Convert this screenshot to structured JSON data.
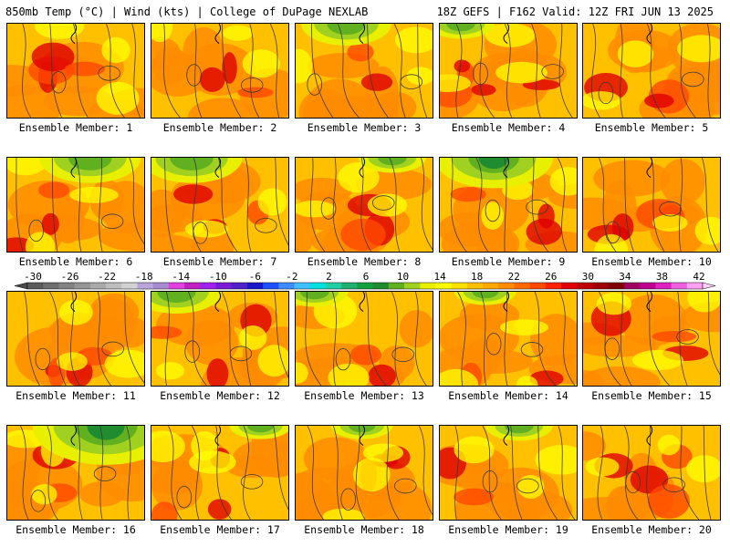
{
  "header": {
    "left": "850mb Temp (°C) | Wind (kts) | College of DuPage NEXLAB",
    "right": "18Z GEFS | F162 Valid: 12Z FRI JUN 13 2025"
  },
  "panels": [
    {
      "label": "Ensemble Member: 1",
      "hot": 0.65,
      "cool": 0.0
    },
    {
      "label": "Ensemble Member: 2",
      "hot": 0.45,
      "cool": 0.05
    },
    {
      "label": "Ensemble Member: 3",
      "hot": 0.4,
      "cool": 0.35
    },
    {
      "label": "Ensemble Member: 4",
      "hot": 0.85,
      "cool": 0.15
    },
    {
      "label": "Ensemble Member: 5",
      "hot": 0.5,
      "cool": 0.0
    },
    {
      "label": "Ensemble Member: 6",
      "hot": 0.55,
      "cool": 0.45
    },
    {
      "label": "Ensemble Member: 7",
      "hot": 0.45,
      "cool": 0.45
    },
    {
      "label": "Ensemble Member: 8",
      "hot": 0.55,
      "cool": 0.15
    },
    {
      "label": "Ensemble Member: 9",
      "hot": 0.55,
      "cool": 0.6
    },
    {
      "label": "Ensemble Member: 10",
      "hot": 0.65,
      "cool": 0.05
    },
    {
      "label": "Ensemble Member: 11",
      "hot": 0.7,
      "cool": 0.0
    },
    {
      "label": "Ensemble Member: 12",
      "hot": 0.45,
      "cool": 0.35
    },
    {
      "label": "Ensemble Member: 13",
      "hot": 0.4,
      "cool": 0.15
    },
    {
      "label": "Ensemble Member: 14",
      "hot": 0.4,
      "cool": 0.1
    },
    {
      "label": "Ensemble Member: 15",
      "hot": 0.45,
      "cool": 0.05
    },
    {
      "label": "Ensemble Member: 16",
      "hot": 0.35,
      "cool": 0.85
    },
    {
      "label": "Ensemble Member: 17",
      "hot": 0.45,
      "cool": 0.1
    },
    {
      "label": "Ensemble Member: 18",
      "hot": 0.45,
      "cool": 0.1
    },
    {
      "label": "Ensemble Member: 19",
      "hot": 0.4,
      "cool": 0.15
    },
    {
      "label": "Ensemble Member: 20",
      "hot": 0.6,
      "cool": 0.0
    }
  ],
  "colorbar": {
    "labels": [
      "-30",
      "-26",
      "-22",
      "-18",
      "-14",
      "-10",
      "-6",
      "-2",
      "2",
      "6",
      "10",
      "14",
      "18",
      "22",
      "26",
      "30",
      "34",
      "38",
      "42"
    ],
    "colors": [
      "#5a5a5a",
      "#6e6e6e",
      "#828282",
      "#969696",
      "#aaaaaa",
      "#bebebe",
      "#d2d2d2",
      "#b8a6d9",
      "#a58ad0",
      "#e040e0",
      "#c020c0",
      "#a020f0",
      "#7a1ad8",
      "#5020c8",
      "#1818c8",
      "#1e50ff",
      "#3c8cff",
      "#40c0ff",
      "#00e0e0",
      "#20d0a0",
      "#20b070",
      "#10a040",
      "#208c30",
      "#60b020",
      "#a0d020",
      "#e8f000",
      "#ffff00",
      "#ffe000",
      "#ffc000",
      "#ffa800",
      "#ff8c00",
      "#ff6a00",
      "#ff4800",
      "#ff2000",
      "#e00000",
      "#c00000",
      "#a00000",
      "#800000",
      "#a00060",
      "#c00090",
      "#e020c0",
      "#f060e0",
      "#ffa0f0"
    ]
  }
}
